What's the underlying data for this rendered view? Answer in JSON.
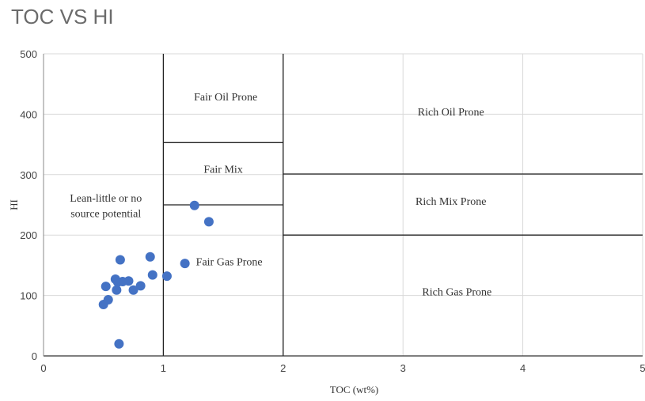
{
  "chart_data": {
    "type": "scatter",
    "title": "TOC VS HI",
    "xlabel": "TOC (wt%)",
    "ylabel": "HI",
    "xlim": [
      0,
      5
    ],
    "ylim": [
      0,
      500
    ],
    "x_ticks": [
      "0",
      "1",
      "2",
      "3",
      "4",
      "5"
    ],
    "y_ticks": [
      "0",
      "100",
      "200",
      "300",
      "400",
      "500"
    ],
    "grid": true,
    "point_color": "#4472c4",
    "points": [
      {
        "x": 0.63,
        "y": 20
      },
      {
        "x": 0.5,
        "y": 85
      },
      {
        "x": 0.54,
        "y": 93
      },
      {
        "x": 0.52,
        "y": 115
      },
      {
        "x": 0.61,
        "y": 109
      },
      {
        "x": 0.6,
        "y": 127
      },
      {
        "x": 0.62,
        "y": 122
      },
      {
        "x": 0.66,
        "y": 123
      },
      {
        "x": 0.71,
        "y": 124
      },
      {
        "x": 0.75,
        "y": 109
      },
      {
        "x": 0.81,
        "y": 116
      },
      {
        "x": 0.64,
        "y": 159
      },
      {
        "x": 0.89,
        "y": 164
      },
      {
        "x": 0.91,
        "y": 134
      },
      {
        "x": 1.03,
        "y": 132
      },
      {
        "x": 1.18,
        "y": 153
      },
      {
        "x": 1.26,
        "y": 249
      },
      {
        "x": 1.38,
        "y": 222
      }
    ],
    "zone_lines": [
      {
        "x1": 1,
        "y1": 0,
        "x2": 1,
        "y2": 500
      },
      {
        "x1": 2,
        "y1": 0,
        "x2": 2,
        "y2": 500
      },
      {
        "x1": 1,
        "y1": 353,
        "x2": 2,
        "y2": 353
      },
      {
        "x1": 1,
        "y1": 250,
        "x2": 2,
        "y2": 250
      },
      {
        "x1": 2,
        "y1": 301,
        "x2": 5,
        "y2": 301
      },
      {
        "x1": 2,
        "y1": 200,
        "x2": 5,
        "y2": 200
      }
    ],
    "zone_labels": [
      {
        "text": "Fair Oil Prone",
        "x": 1.52,
        "y": 423
      },
      {
        "text": "Fair Mix",
        "x": 1.5,
        "y": 303
      },
      {
        "text": "Fair Gas Prone",
        "x": 1.55,
        "y": 150
      },
      {
        "text": "Rich Oil Prone",
        "x": 3.4,
        "y": 398
      },
      {
        "text": "Rich Mix Prone",
        "x": 3.4,
        "y": 250
      },
      {
        "text": "Rich Gas Prone",
        "x": 3.45,
        "y": 100
      },
      {
        "text": "Lean-little or no",
        "x": 0.52,
        "y": 255
      },
      {
        "text": "source potential",
        "x": 0.52,
        "y": 230
      }
    ]
  }
}
